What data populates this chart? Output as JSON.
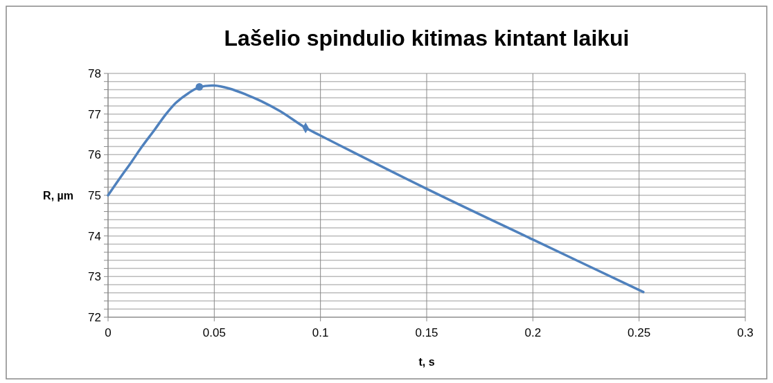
{
  "chart_data": {
    "type": "line",
    "title": "Lašelio spindulio kitimas kintant laikui",
    "xlabel": "t, s",
    "ylabel": "R, µm",
    "xlim": [
      0,
      0.3
    ],
    "xticks": [
      0,
      0.05,
      0.1,
      0.15,
      0.2,
      0.25,
      0.3
    ],
    "ylim": [
      72,
      78
    ],
    "yticks": [
      72,
      {
        "value": 72.2,
        "label": null
      },
      {
        "value": 72.4,
        "label": null
      },
      {
        "value": 72.6,
        "label": null
      },
      {
        "value": 72.8,
        "label": null
      },
      73,
      {
        "value": 73.2,
        "label": null
      },
      {
        "value": 73.4,
        "label": null
      },
      {
        "value": 73.6,
        "label": null
      },
      {
        "value": 73.8,
        "label": null
      },
      74,
      {
        "value": 74.2,
        "label": null
      },
      {
        "value": 74.4,
        "label": null
      },
      {
        "value": 74.6,
        "label": null
      },
      {
        "value": 74.8,
        "label": null
      },
      75,
      {
        "value": 75.2,
        "label": null
      },
      {
        "value": 75.4,
        "label": null
      },
      {
        "value": 75.6,
        "label": null
      },
      {
        "value": 75.8,
        "label": null
      },
      76,
      {
        "value": 76.2,
        "label": null
      },
      {
        "value": 76.4,
        "label": null
      },
      {
        "value": 76.6,
        "label": null
      },
      {
        "value": 76.8,
        "label": null
      },
      77,
      {
        "value": 77.2,
        "label": null
      },
      {
        "value": 77.4,
        "label": null
      },
      {
        "value": 77.6,
        "label": null
      },
      {
        "value": 77.8,
        "label": null
      },
      78
    ],
    "grid": true,
    "series": [
      {
        "color": "#4f81bd",
        "marker": "none",
        "x": [
          0,
          0.005,
          0.011,
          0.016,
          0.022,
          0.027,
          0.032,
          0.038,
          0.043,
          0.05,
          0.057,
          0.065,
          0.072,
          0.081,
          0.093,
          0.1,
          0.15,
          0.2,
          0.252
        ],
        "values": [
          75.0,
          75.38,
          75.82,
          76.2,
          76.62,
          76.98,
          77.28,
          77.52,
          77.66,
          77.7,
          77.63,
          77.48,
          77.32,
          77.07,
          76.66,
          76.47,
          75.16,
          73.91,
          72.62
        ]
      },
      {
        "type": "scatter",
        "color": "#4f81bd",
        "marker": "circle",
        "x": [
          0.043
        ],
        "values": [
          77.67
        ]
      },
      {
        "type": "scatter",
        "color": "#4f81bd",
        "marker": "diamond",
        "x": [
          0.093
        ],
        "values": [
          76.66
        ]
      }
    ]
  }
}
